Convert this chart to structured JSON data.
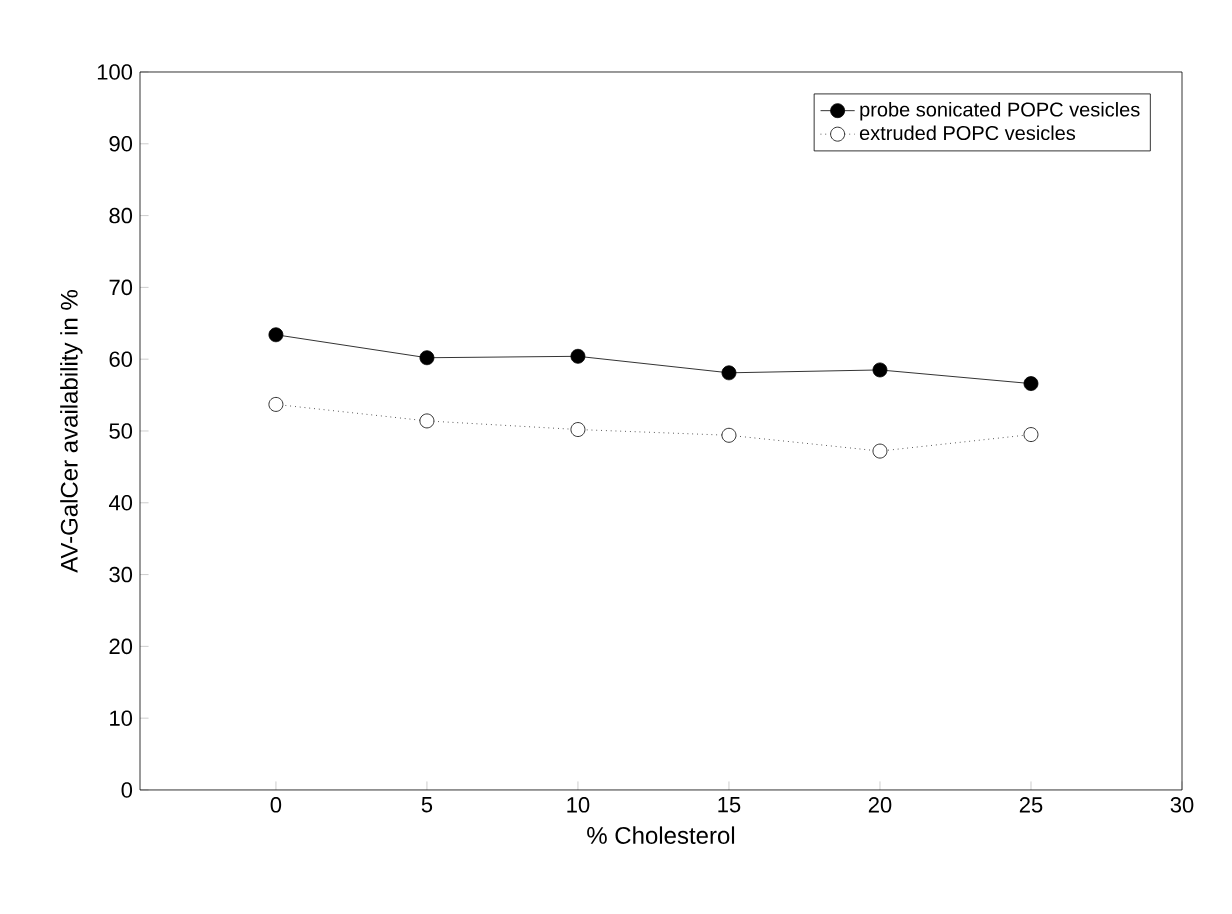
{
  "chart_data": {
    "type": "line",
    "xlabel": "% Cholesterol",
    "ylabel": "AV-GalCer availability in %",
    "x": [
      0,
      5,
      10,
      15,
      20,
      25
    ],
    "series": [
      {
        "name": "probe sonicated POPC vesicles",
        "color": "#000000",
        "values": [
          63.4,
          60.2,
          60.4,
          58.1,
          58.5,
          56.6
        ],
        "marker": "circle",
        "line_style": "solid"
      },
      {
        "name": "extruded POPC vesicles",
        "color": "#000000",
        "values": [
          53.7,
          51.4,
          50.2,
          49.4,
          47.2,
          49.5
        ],
        "marker": "circle",
        "line_style": "dotted"
      }
    ],
    "xlim": [
      -4.5,
      30
    ],
    "ylim": [
      0,
      100
    ],
    "xticks": [
      0,
      5,
      10,
      15,
      20,
      25,
      30
    ],
    "yticks": [
      0,
      10,
      20,
      30,
      40,
      50,
      60,
      70,
      80,
      90,
      100
    ],
    "grid": false,
    "legend": "top right"
  }
}
